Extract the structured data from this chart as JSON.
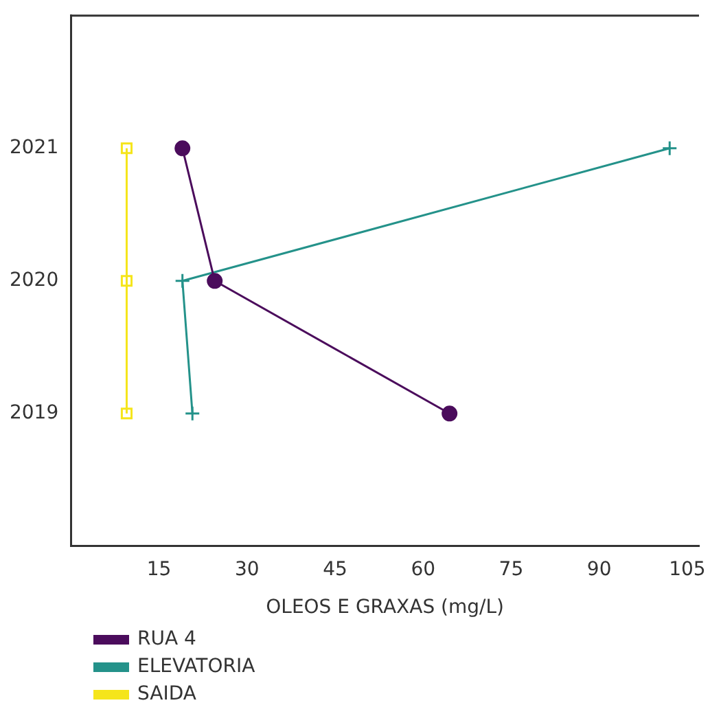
{
  "chart_data": {
    "type": "line",
    "xlabel": "OLEOS E GRAXAS (mg/L)",
    "xlim": [
      0,
      107
    ],
    "xticks": [
      15,
      30,
      45,
      60,
      75,
      90,
      105
    ],
    "ylim": [
      2018,
      2022
    ],
    "yticks": [
      2019,
      2020,
      2021
    ],
    "grid": false,
    "legend": "bottom left",
    "line_style": "solid",
    "series": [
      {
        "name": "RUA 4",
        "color": "#4b0c5c",
        "marker": "circle",
        "x": [
          19,
          24.5,
          64.5
        ],
        "values": [
          2021,
          2020,
          2019
        ]
      },
      {
        "name": "ELEVATORIA",
        "color": "#24928a",
        "marker": "cross",
        "x": [
          20.7,
          19,
          102
        ],
        "values": [
          2019,
          2020,
          2021
        ]
      },
      {
        "name": "SAIDA",
        "color": "#f5e51b",
        "marker": "square",
        "x": [
          9.5,
          9.5,
          9.5
        ],
        "values": [
          2019,
          2020,
          2021
        ]
      }
    ]
  }
}
